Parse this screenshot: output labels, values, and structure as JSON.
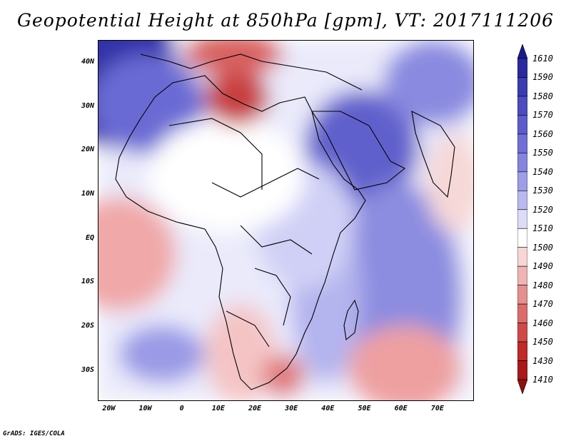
{
  "title": "Geopotential Height at 850hPa [gpm], VT: 2017111206",
  "credit": "GrADS: IGES/COLA",
  "map": {
    "lon_range": [
      -23,
      80
    ],
    "lat_range": [
      -37,
      45
    ],
    "lat_labels": [
      "40N",
      "30N",
      "20N",
      "10N",
      "EQ",
      "10S",
      "20S",
      "30S"
    ],
    "lat_values": [
      40,
      30,
      20,
      10,
      0,
      -10,
      -20,
      -30
    ],
    "lon_labels": [
      "20W",
      "10W",
      "0",
      "10E",
      "20E",
      "30E",
      "40E",
      "50E",
      "60E",
      "70E"
    ],
    "lon_values": [
      -20,
      -10,
      0,
      10,
      20,
      30,
      40,
      50,
      60,
      70
    ]
  },
  "colorbar": {
    "labels": [
      "1610",
      "1590",
      "1580",
      "1570",
      "1560",
      "1550",
      "1540",
      "1530",
      "1520",
      "1510",
      "1500",
      "1490",
      "1480",
      "1470",
      "1460",
      "1450",
      "1430",
      "1410"
    ],
    "colors": [
      "#1a1a8f",
      "#2a2aa0",
      "#3b3bb2",
      "#4c4cc0",
      "#5c5ccc",
      "#6f6fd6",
      "#8585df",
      "#9d9de8",
      "#b9b9f0",
      "#dcdcf8",
      "#ffffff",
      "#f8d6d6",
      "#f0b4b4",
      "#e68f8f",
      "#dc6c6c",
      "#d04848",
      "#c02a2a",
      "#a81a1a",
      "#901010"
    ]
  }
}
